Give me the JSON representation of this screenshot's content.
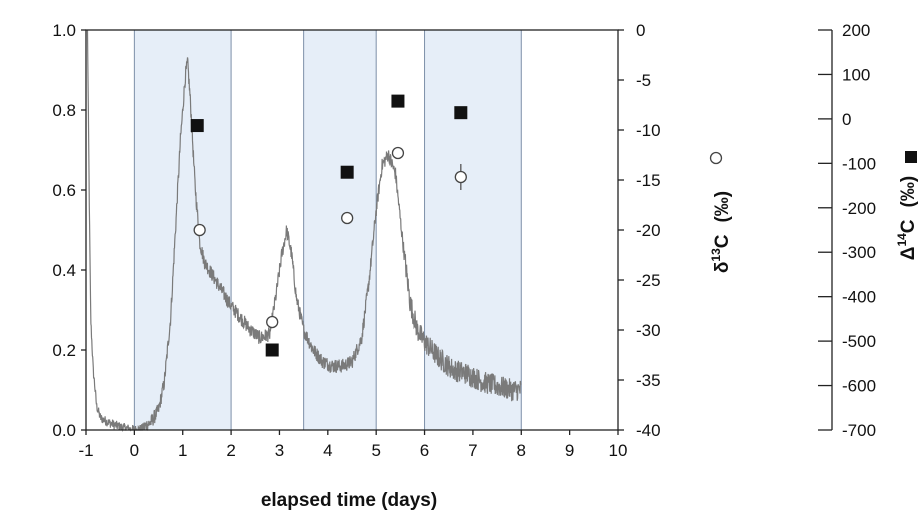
{
  "chart_data": {
    "type": "scatter",
    "xlabel": "elapsed time (days)",
    "ylabel_right_1": "δ13C (‰)",
    "ylabel_right_1_parts": {
      "prefix": "δ",
      "sup": "13",
      "suffix": "C",
      "unit": "(‰)"
    },
    "ylabel_right_1_marker": "open-circle",
    "ylabel_right_2": "Δ14C (‰)",
    "ylabel_right_2_parts": {
      "prefix": "Δ",
      "sup": "14",
      "suffix": "C",
      "unit": "(‰)"
    },
    "ylabel_right_2_marker": "filled-square",
    "xlim": [
      -1,
      10
    ],
    "x_ticks": [
      "-1",
      "0",
      "1",
      "2",
      "3",
      "4",
      "5",
      "6",
      "7",
      "8",
      "9",
      "10"
    ],
    "y_left_lim": [
      0,
      1
    ],
    "y_left_ticks": [
      "0.0",
      "0.2",
      "0.4",
      "0.6",
      "0.8",
      "1.0"
    ],
    "y_right1_lim": [
      -40,
      0
    ],
    "y_right1_ticks": [
      "-40",
      "-35",
      "-30",
      "-25",
      "-20",
      "-15",
      "-10",
      "-5",
      "0"
    ],
    "y_right2_lim": [
      -700,
      200
    ],
    "y_right2_ticks": [
      "-700",
      "-600",
      "-500",
      "-400",
      "-300",
      "-200",
      "-100",
      "0",
      "100",
      "200"
    ],
    "shaded_intervals": [
      [
        0,
        2
      ],
      [
        3.5,
        5
      ],
      [
        6,
        8
      ]
    ],
    "shade_color": "#e6eef8",
    "shade_border_color": "#7d8fa8",
    "trace_color": "#7a7a7a",
    "trace_points": [
      [
        -0.97,
        1.0
      ],
      [
        -0.93,
        0.55
      ],
      [
        -0.9,
        0.27
      ],
      [
        -0.85,
        0.15
      ],
      [
        -0.78,
        0.06
      ],
      [
        -0.7,
        0.03
      ],
      [
        -0.55,
        0.02
      ],
      [
        -0.35,
        0.01
      ],
      [
        -0.2,
        0.005
      ],
      [
        0.0,
        0.0
      ],
      [
        0.15,
        0.003
      ],
      [
        0.35,
        0.02
      ],
      [
        0.5,
        0.05
      ],
      [
        0.62,
        0.12
      ],
      [
        0.75,
        0.28
      ],
      [
        0.85,
        0.5
      ],
      [
        0.95,
        0.72
      ],
      [
        1.05,
        0.88
      ],
      [
        1.1,
        0.92
      ],
      [
        1.16,
        0.82
      ],
      [
        1.25,
        0.62
      ],
      [
        1.35,
        0.47
      ],
      [
        1.45,
        0.42
      ],
      [
        1.6,
        0.39
      ],
      [
        1.8,
        0.35
      ],
      [
        2.0,
        0.31
      ],
      [
        2.2,
        0.28
      ],
      [
        2.4,
        0.25
      ],
      [
        2.6,
        0.23
      ],
      [
        2.8,
        0.24
      ],
      [
        2.92,
        0.33
      ],
      [
        3.05,
        0.44
      ],
      [
        3.15,
        0.5
      ],
      [
        3.25,
        0.44
      ],
      [
        3.35,
        0.33
      ],
      [
        3.5,
        0.25
      ],
      [
        3.7,
        0.2
      ],
      [
        3.9,
        0.17
      ],
      [
        4.1,
        0.16
      ],
      [
        4.3,
        0.16
      ],
      [
        4.5,
        0.17
      ],
      [
        4.7,
        0.23
      ],
      [
        4.85,
        0.37
      ],
      [
        5.0,
        0.55
      ],
      [
        5.12,
        0.66
      ],
      [
        5.25,
        0.69
      ],
      [
        5.4,
        0.64
      ],
      [
        5.55,
        0.47
      ],
      [
        5.7,
        0.32
      ],
      [
        5.85,
        0.25
      ],
      [
        6.0,
        0.22
      ],
      [
        6.3,
        0.18
      ],
      [
        6.6,
        0.15
      ],
      [
        6.9,
        0.14
      ],
      [
        7.2,
        0.12
      ],
      [
        7.5,
        0.11
      ],
      [
        7.8,
        0.1
      ],
      [
        8.0,
        0.1
      ]
    ],
    "delta13C_points": [
      [
        1.35,
        -20.0
      ],
      [
        2.85,
        -29.2
      ],
      [
        4.4,
        -18.8
      ],
      [
        5.45,
        -12.3
      ],
      [
        6.75,
        -14.7
      ]
    ],
    "delta13C_error_bar_x": 6.75,
    "delta13C_error_bar_range": [
      -16.0,
      -13.4
    ],
    "delta14C_points": [
      [
        1.3,
        -15.0
      ],
      [
        2.85,
        -520.0
      ],
      [
        4.4,
        -120.0
      ],
      [
        5.45,
        40.0
      ],
      [
        6.75,
        14.0
      ]
    ]
  }
}
